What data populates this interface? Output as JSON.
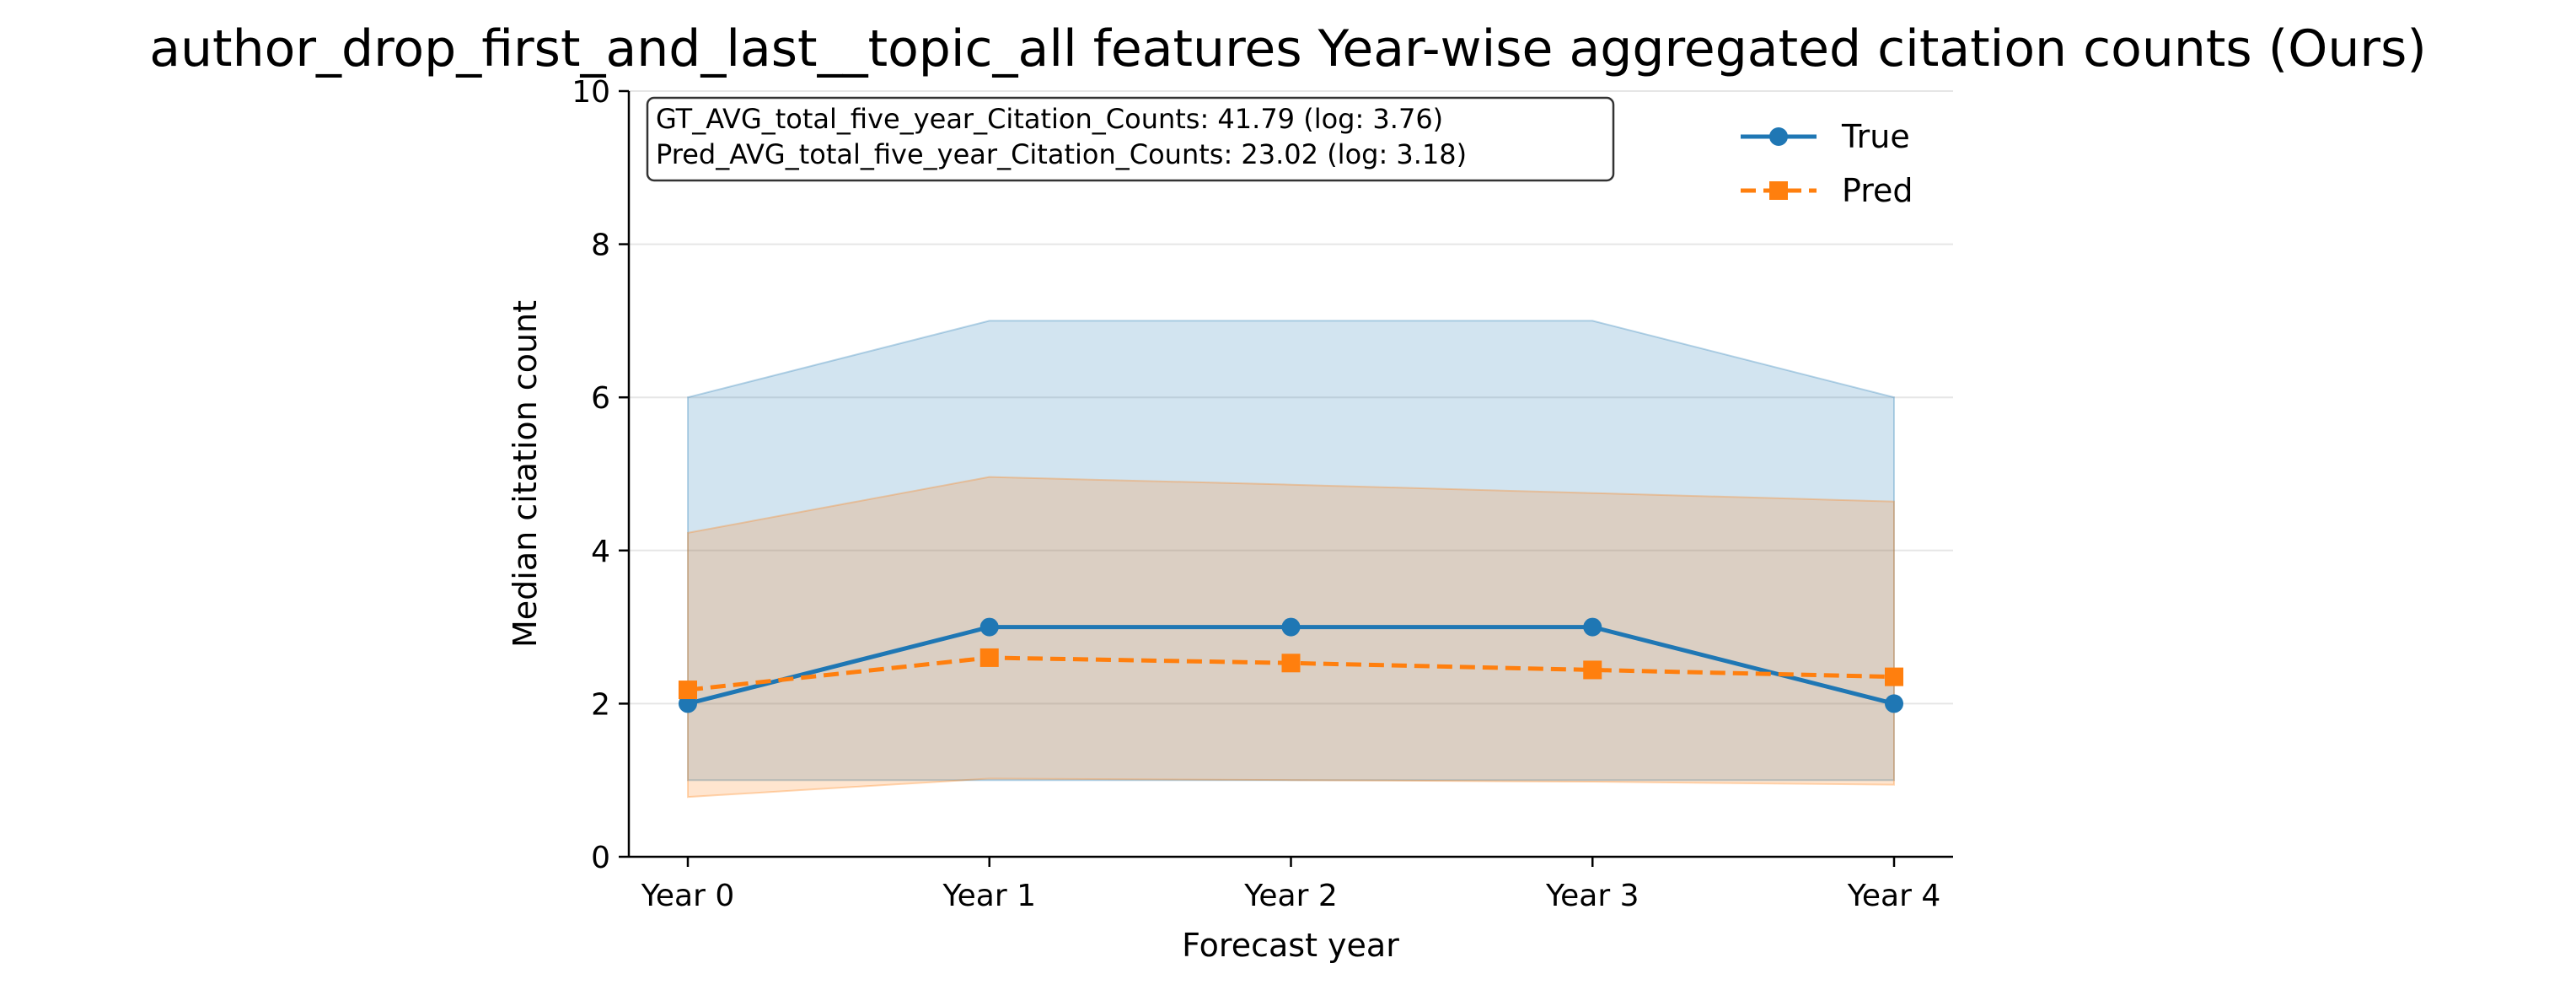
{
  "chart_data": {
    "type": "line",
    "title": "author_drop_first_and_last__topic_all features Year-wise aggregated citation counts (Ours)",
    "xlabel": "Forecast year",
    "ylabel": "Median citation count",
    "categories": [
      "Year 0",
      "Year 1",
      "Year 2",
      "Year 3",
      "Year 4"
    ],
    "ylim": [
      0,
      10
    ],
    "yticks": [
      "0",
      "2",
      "4",
      "6",
      "8",
      "10"
    ],
    "grid": "horizontal",
    "legend_position": "top-right",
    "series": [
      {
        "name": "True",
        "values": [
          2,
          3,
          3,
          3,
          2
        ],
        "band_lower": [
          1,
          1,
          1,
          1,
          1
        ],
        "band_upper": [
          6,
          7,
          7,
          7,
          6
        ],
        "color": "#1f77b4",
        "marker": "circle",
        "line_style": "solid"
      },
      {
        "name": "Pred",
        "values": [
          2.18,
          2.6,
          2.53,
          2.44,
          2.35
        ],
        "band_lower": [
          0.78,
          1.02,
          1.0,
          0.98,
          0.94
        ],
        "band_upper": [
          4.23,
          4.96,
          4.86,
          4.75,
          4.64
        ],
        "color": "#ff7f0e",
        "marker": "square",
        "line_style": "dashed"
      }
    ],
    "annotation": [
      "GT_AVG_total_five_year_Citation_Counts: 41.79 (log: 3.76)",
      "Pred_AVG_total_five_year_Citation_Counts: 23.02 (log: 3.18)"
    ]
  }
}
